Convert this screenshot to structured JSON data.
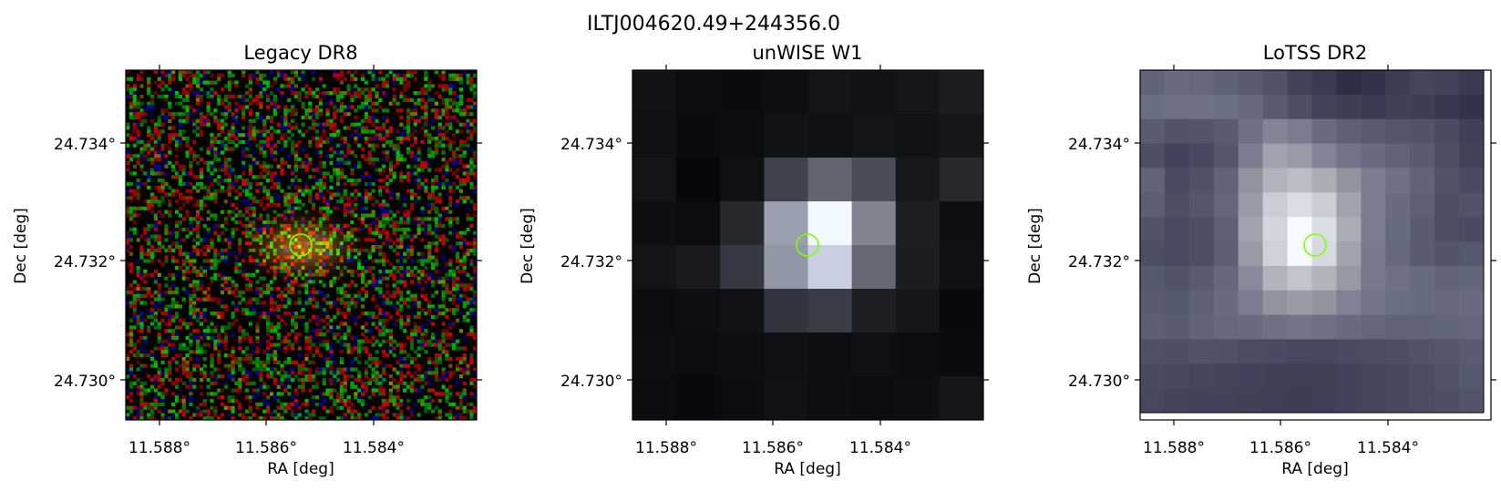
{
  "figure_title": "ILTJ004620.49+244356.0",
  "colors": {
    "marker": "#7fff00",
    "axes": "#000000"
  },
  "panels": [
    {
      "title": "Legacy DR8",
      "style": "rgb-noise",
      "xlabel": "RA [deg]",
      "ylabel": "Dec [deg]",
      "xticks": [
        "11.588°",
        "11.586°",
        "11.584°"
      ],
      "yticks": [
        "24.734°",
        "24.732°",
        "24.730°"
      ],
      "marker_icon": "circle-marker"
    },
    {
      "title": "unWISE W1",
      "style": "grayscale-blocks",
      "xlabel": "RA [deg]",
      "ylabel": "Dec [deg]",
      "xticks": [
        "11.588°",
        "11.586°",
        "11.584°"
      ],
      "yticks": [
        "24.734°",
        "24.732°",
        "24.730°"
      ],
      "marker_icon": "circle-marker"
    },
    {
      "title": "LoTSS DR2",
      "style": "bone-blocks",
      "xlabel": "RA [deg]",
      "ylabel": "Dec [deg]",
      "xticks": [
        "11.588°",
        "11.586°",
        "11.584°"
      ],
      "yticks": [
        "24.734°",
        "24.732°",
        "24.730°"
      ],
      "marker_icon": "circle-marker"
    }
  ]
}
